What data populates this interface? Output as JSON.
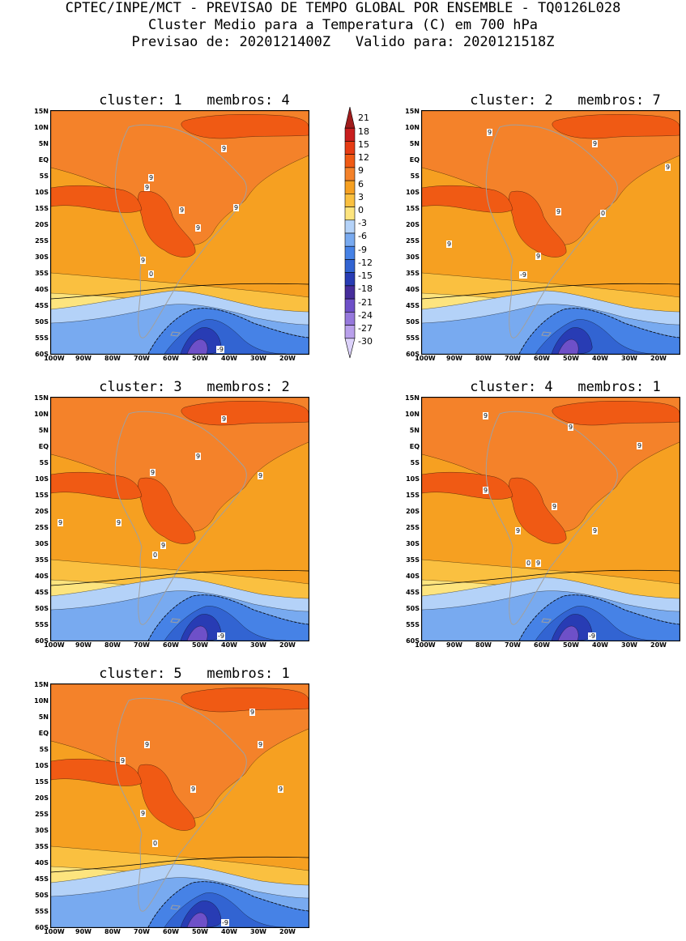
{
  "header": {
    "line1": "CPTEC/INPE/MCT - PREVISAO DE TEMPO GLOBAL POR ENSEMBLE - TQ0126L028",
    "line2": "Cluster Medio para a Temperatura (C) em 700 hPa",
    "line3": "Previsao de: 2020121400Z   Valido para: 2020121518Z"
  },
  "lat_labels": [
    "15N",
    "10N",
    "5N",
    "EQ",
    "5S",
    "10S",
    "15S",
    "20S",
    "25S",
    "30S",
    "35S",
    "40S",
    "45S",
    "50S",
    "55S",
    "60S"
  ],
  "lon_labels": [
    "100W",
    "90W",
    "80W",
    "70W",
    "60W",
    "50W",
    "40W",
    "30W",
    "20W"
  ],
  "colorbar": {
    "levels": [
      "21",
      "18",
      "15",
      "12",
      "9",
      "6",
      "3",
      "0",
      "-3",
      "-6",
      "-9",
      "-12",
      "-15",
      "-18",
      "-21",
      "-24",
      "-27",
      "-30"
    ],
    "colors": [
      "#a01c1c",
      "#c81e1e",
      "#e63c14",
      "#f05a14",
      "#f4822a",
      "#f6a021",
      "#fac040",
      "#fde47e",
      "#b4d2f8",
      "#78aaf0",
      "#4682e6",
      "#3264d2",
      "#283cb4",
      "#462d9b",
      "#6e50c8",
      "#9678dc",
      "#b9a0eb",
      "#dcd2fa"
    ]
  },
  "palette": {
    "c12": "#f05a14",
    "c9": "#f4822a",
    "c6": "#f6a021",
    "c3": "#fac040",
    "c0": "#fde47e",
    "cm3": "#b4d2f8",
    "cm6": "#78aaf0",
    "cm9": "#4682e6",
    "cm12": "#3264d2",
    "cm15": "#283cb4",
    "cm18": "#6e50c8",
    "cm21": "#9678dc",
    "land": "#a0a0a0"
  },
  "panels": [
    {
      "title": "cluster: 1   membros: 4",
      "labels": [
        "9",
        "9",
        "9",
        "9",
        "9",
        "9",
        "9",
        "0",
        "-9"
      ]
    },
    {
      "title": "cluster: 2   membros: 7",
      "labels": [
        "9",
        "9",
        "9",
        "9",
        "9",
        "9",
        "0",
        "-9"
      ]
    },
    {
      "title": "cluster: 3   membros: 2",
      "labels": [
        "9",
        "9",
        "9",
        "9",
        "9",
        "9",
        "9",
        "0",
        "-9"
      ]
    },
    {
      "title": "cluster: 4   membros: 1",
      "labels": [
        "9",
        "9",
        "9",
        "9",
        "9",
        "9",
        "9",
        "9",
        "0",
        "-9"
      ]
    },
    {
      "title": "cluster: 5   membros: 1",
      "labels": [
        "9",
        "9",
        "9",
        "9",
        "9",
        "9",
        "9",
        "0",
        "-9"
      ]
    }
  ]
}
